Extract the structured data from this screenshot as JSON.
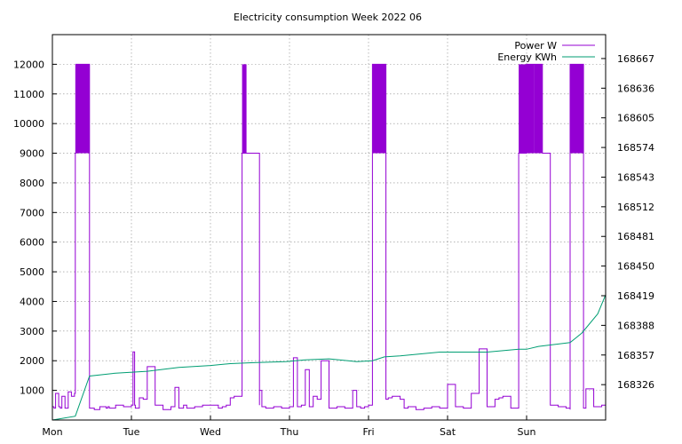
{
  "chart_data": {
    "type": "line",
    "title": "Electricity consumption Week 2022 06",
    "x_tick_labels": [
      "Mon",
      "Tue",
      "Wed",
      "Thu",
      "Fri",
      "Sat",
      "Sun"
    ],
    "x_range_days": [
      0,
      7
    ],
    "ylim_left": [
      0,
      13000
    ],
    "y_ticks_left": [
      1000,
      2000,
      3000,
      4000,
      5000,
      6000,
      7000,
      8000,
      9000,
      10000,
      11000,
      12000
    ],
    "ylim_right": [
      168289,
      168692
    ],
    "y_ticks_right": [
      168326,
      168357,
      168388,
      168419,
      168450,
      168481,
      168512,
      168543,
      168574,
      168605,
      168636,
      168667
    ],
    "grid": true,
    "legend_position": "top-right",
    "series": [
      {
        "name": "Power W",
        "color": "#9400d3",
        "axis": "left",
        "x": [
          0.0,
          0.02,
          0.04,
          0.08,
          0.1,
          0.12,
          0.16,
          0.2,
          0.24,
          0.28,
          0.29,
          0.3,
          0.3,
          0.47,
          0.47,
          0.47,
          0.47,
          0.53,
          0.6,
          0.68,
          0.7,
          0.72,
          0.8,
          0.9,
          1.0,
          1.02,
          1.04,
          1.05,
          1.1,
          1.15,
          1.2,
          1.3,
          1.4,
          1.5,
          1.55,
          1.6,
          1.66,
          1.7,
          1.8,
          1.9,
          2.0,
          2.1,
          2.15,
          2.2,
          2.25,
          2.3,
          2.4,
          2.45,
          2.45,
          2.45,
          2.45,
          2.62,
          2.62,
          2.65,
          2.7,
          2.8,
          2.9,
          3.0,
          3.05,
          3.1,
          3.15,
          3.2,
          3.25,
          3.3,
          3.35,
          3.4,
          3.5,
          3.6,
          3.7,
          3.8,
          3.85,
          3.9,
          3.95,
          4.0,
          4.05,
          4.05,
          4.05,
          4.05,
          4.22,
          4.22,
          4.25,
          4.3,
          4.4,
          4.45,
          4.5,
          4.6,
          4.7,
          4.8,
          4.9,
          5.0,
          5.1,
          5.2,
          5.3,
          5.4,
          5.5,
          5.6,
          5.65,
          5.7,
          5.8,
          5.9,
          6.0,
          6.1,
          6.2,
          6.3,
          6.4,
          6.5,
          6.55,
          6.55,
          6.55,
          6.55,
          6.72,
          6.72,
          6.75,
          6.85,
          6.95,
          7.0
        ],
        "y": [
          450,
          400,
          900,
          450,
          400,
          800,
          400,
          950,
          800,
          900,
          9000,
          12000,
          12000,
          12000,
          9000,
          500,
          400,
          350,
          450,
          400,
          450,
          400,
          500,
          450,
          500,
          2300,
          500,
          400,
          750,
          700,
          1800,
          500,
          350,
          450,
          1100,
          400,
          500,
          400,
          450,
          500,
          500,
          400,
          450,
          500,
          750,
          800,
          9000,
          12000,
          12000,
          12000,
          9000,
          500,
          1000,
          450,
          400,
          450,
          400,
          450,
          2100,
          450,
          500,
          1700,
          450,
          800,
          700,
          2000,
          400,
          450,
          400,
          1000,
          450,
          400,
          450,
          500,
          9000,
          12000,
          12000,
          12000,
          9000,
          700,
          750,
          800,
          700,
          400,
          450,
          350,
          400,
          450,
          400,
          1200,
          450,
          400,
          900,
          2400,
          450,
          700,
          750,
          800,
          400,
          9000,
          12000,
          12000,
          9000,
          500,
          450,
          400,
          350,
          9000,
          12000,
          12000,
          9000,
          400,
          1050,
          450,
          500,
          450
        ]
      },
      {
        "name": "Energy KWh",
        "color": "#009e73",
        "axis": "right",
        "x": [
          0.0,
          0.29,
          0.47,
          0.8,
          1.2,
          1.6,
          2.0,
          2.25,
          2.55,
          2.95,
          3.2,
          3.5,
          3.85,
          4.05,
          4.2,
          4.4,
          4.9,
          5.5,
          5.9,
          6.0,
          6.15,
          6.55,
          6.7,
          6.9,
          7.0
        ],
        "y": [
          168289,
          168293,
          168335,
          168338,
          168340,
          168344,
          168346,
          168348,
          168349,
          168350,
          168352,
          168353,
          168350,
          168351,
          168355,
          168356,
          168360,
          168360,
          168363,
          168363,
          168366,
          168370,
          168380,
          168400,
          168420
        ]
      }
    ]
  }
}
